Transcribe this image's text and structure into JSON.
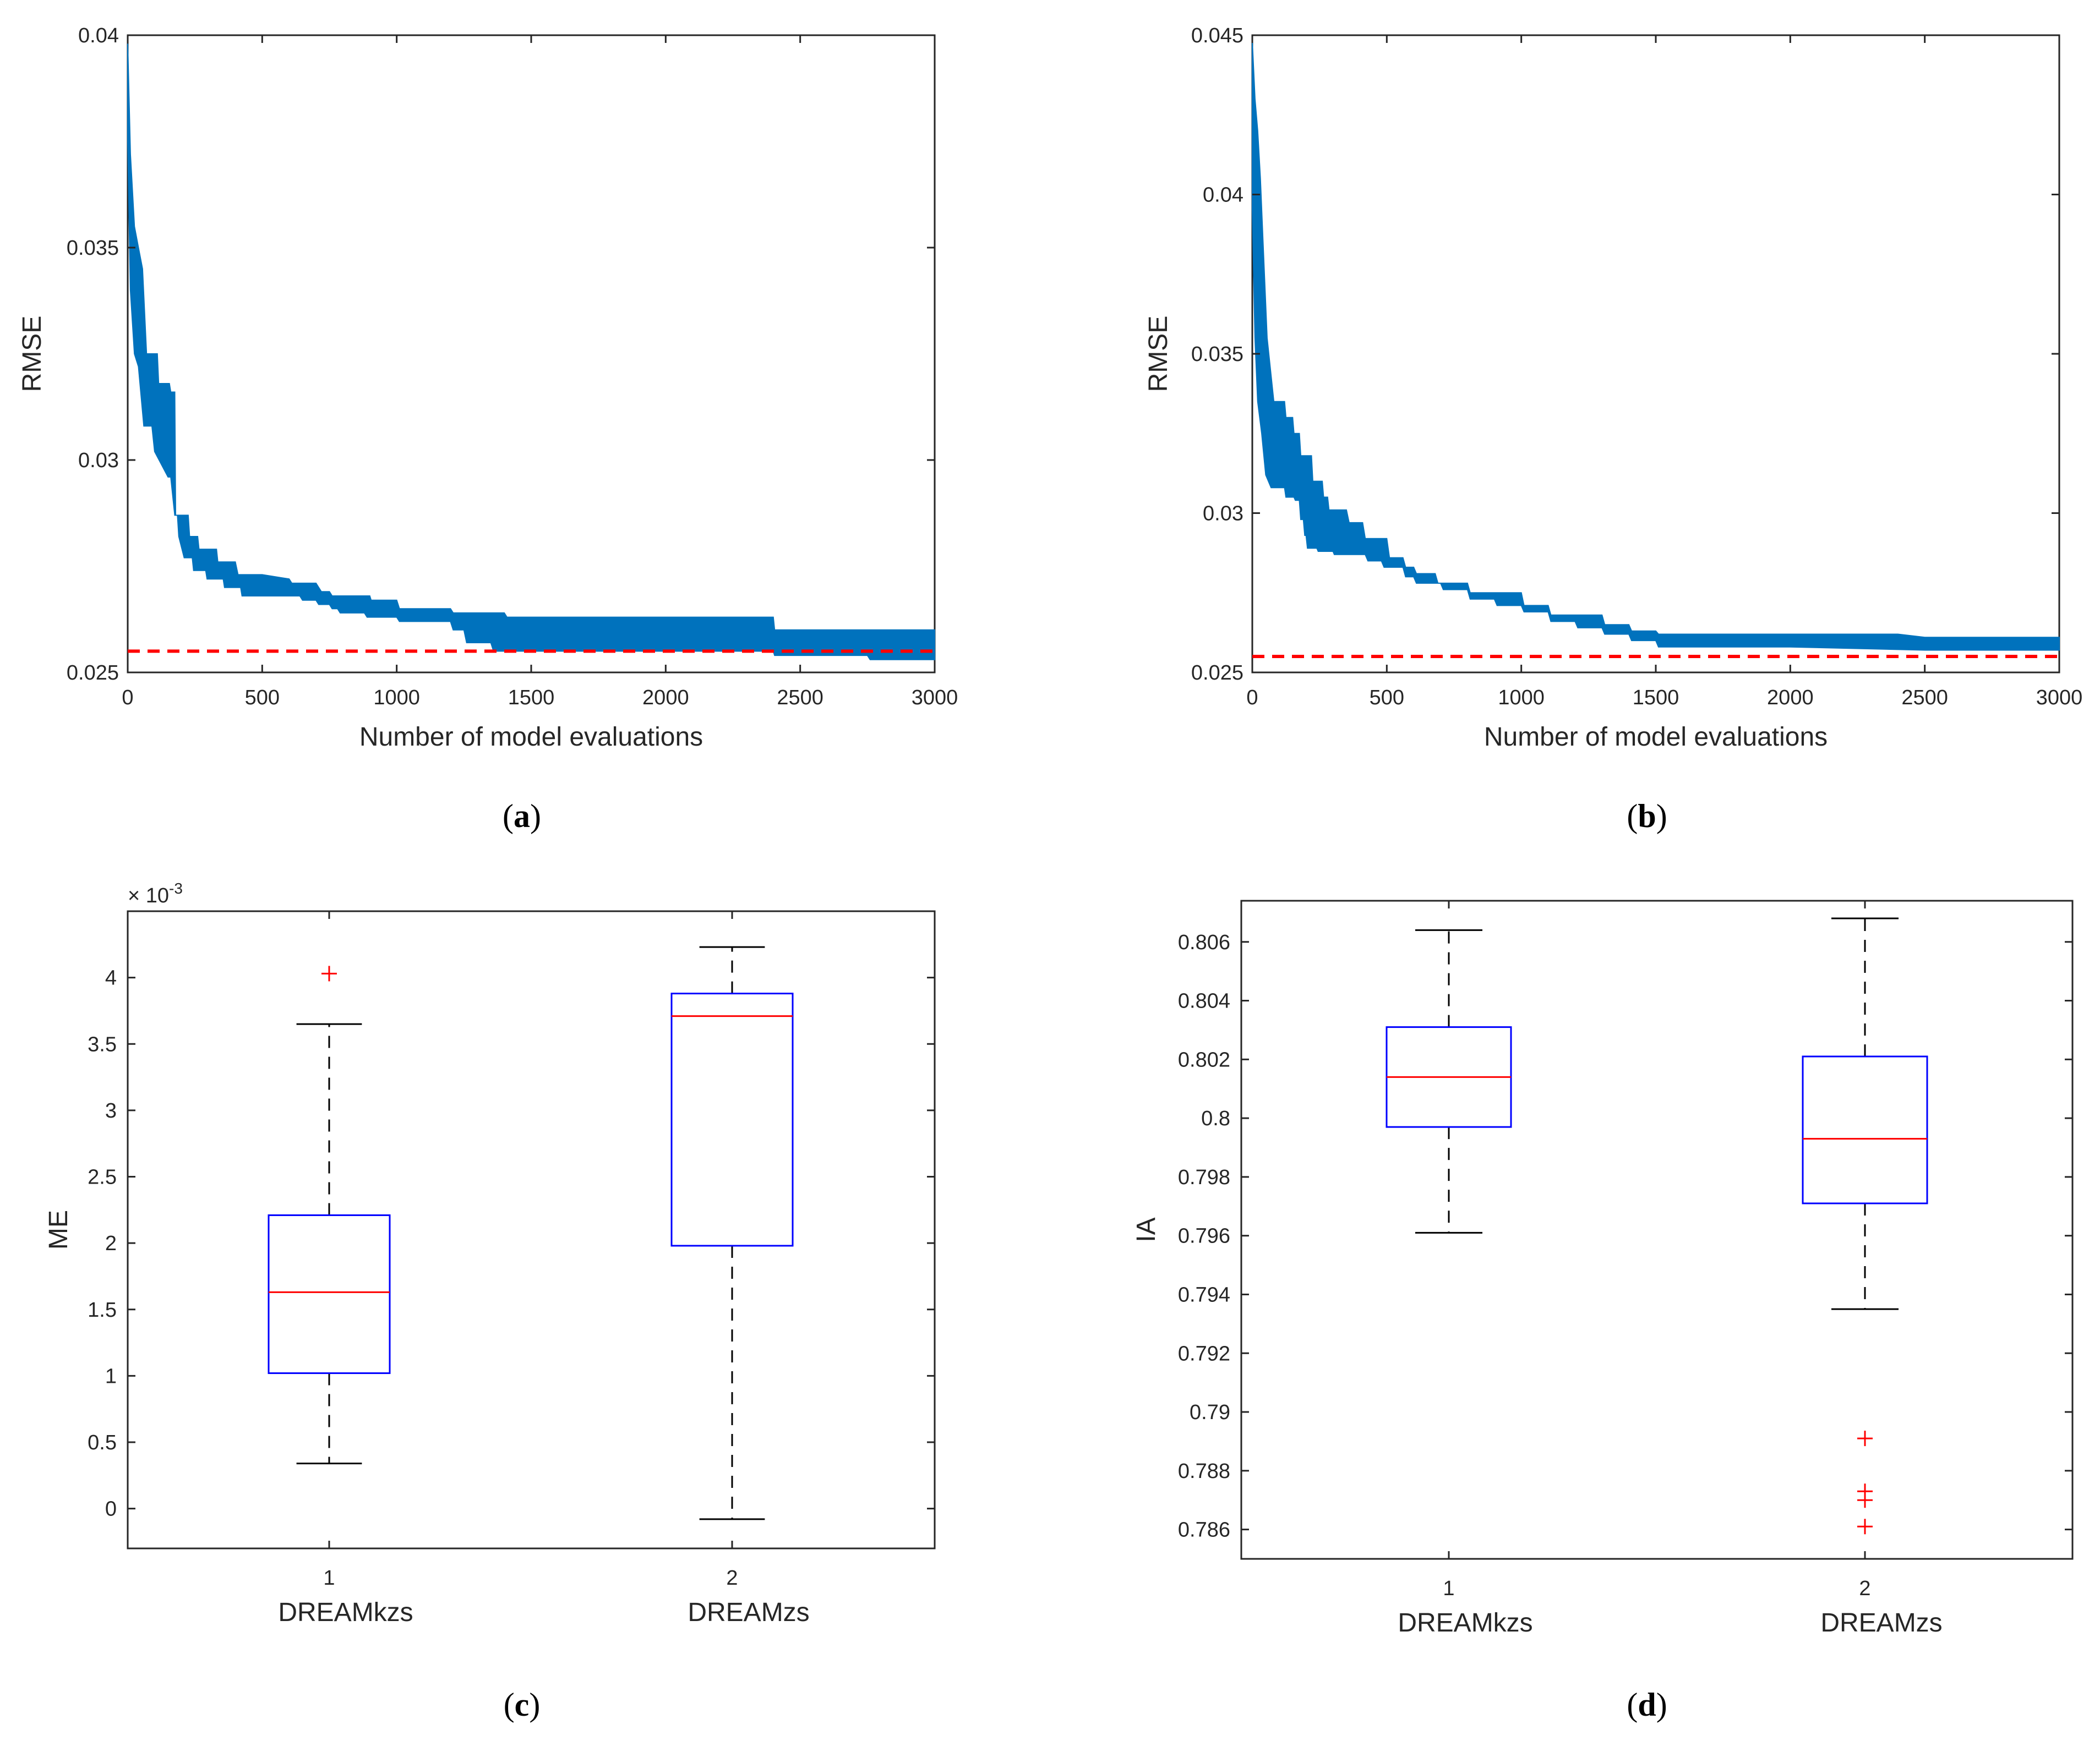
{
  "chart_data": [
    {
      "type": "area",
      "panel": "a",
      "caption": {
        "pre": "(",
        "letter": "a",
        "post": ")"
      },
      "xlabel": "Number of model evaluations",
      "ylabel": "RMSE",
      "xlim": [
        0,
        3000
      ],
      "ylim": [
        0.025,
        0.04
      ],
      "xticks": [
        "0",
        "500",
        "1000",
        "1500",
        "2000",
        "2500",
        "3000"
      ],
      "yticks": [
        "0.025",
        "0.03",
        "0.035",
        "0.04"
      ],
      "band_color": "#0072BD",
      "reference_value": 0.0255,
      "reference_color": "#FF0000",
      "upper": [
        [
          0,
          0.0398
        ],
        [
          10,
          0.0372
        ],
        [
          25,
          0.0355
        ],
        [
          40,
          0.035
        ],
        [
          55,
          0.0345
        ],
        [
          70,
          0.0325
        ],
        [
          110,
          0.0325
        ],
        [
          115,
          0.0318
        ],
        [
          155,
          0.0318
        ],
        [
          160,
          0.0316
        ],
        [
          175,
          0.0316
        ],
        [
          178,
          0.0287
        ],
        [
          225,
          0.0287
        ],
        [
          230,
          0.0282
        ],
        [
          260,
          0.0282
        ],
        [
          265,
          0.0279
        ],
        [
          330,
          0.0279
        ],
        [
          335,
          0.0276
        ],
        [
          400,
          0.0276
        ],
        [
          410,
          0.0273
        ],
        [
          500,
          0.0273
        ],
        [
          600,
          0.0272
        ],
        [
          610,
          0.0271
        ],
        [
          700,
          0.0271
        ],
        [
          720,
          0.0269
        ],
        [
          750,
          0.0269
        ],
        [
          760,
          0.0268
        ],
        [
          900,
          0.0268
        ],
        [
          905,
          0.0267
        ],
        [
          1000,
          0.0267
        ],
        [
          1010,
          0.0265
        ],
        [
          1200,
          0.0265
        ],
        [
          1210,
          0.0264
        ],
        [
          1400,
          0.0264
        ],
        [
          1410,
          0.0263
        ],
        [
          2000,
          0.0263
        ],
        [
          2400,
          0.0263
        ],
        [
          2405,
          0.026
        ],
        [
          3000,
          0.026
        ]
      ],
      "lower": [
        [
          0,
          0.0375
        ],
        [
          10,
          0.034
        ],
        [
          25,
          0.0325
        ],
        [
          40,
          0.0322
        ],
        [
          60,
          0.0308
        ],
        [
          90,
          0.0308
        ],
        [
          100,
          0.0302
        ],
        [
          150,
          0.0296
        ],
        [
          160,
          0.0296
        ],
        [
          175,
          0.0287
        ],
        [
          185,
          0.0287
        ],
        [
          190,
          0.0282
        ],
        [
          210,
          0.0277
        ],
        [
          240,
          0.0277
        ],
        [
          245,
          0.0274
        ],
        [
          290,
          0.0274
        ],
        [
          295,
          0.0272
        ],
        [
          355,
          0.0272
        ],
        [
          360,
          0.027
        ],
        [
          420,
          0.027
        ],
        [
          425,
          0.0268
        ],
        [
          500,
          0.0268
        ],
        [
          505,
          0.0268
        ],
        [
          560,
          0.0268
        ],
        [
          640,
          0.0268
        ],
        [
          650,
          0.0267
        ],
        [
          700,
          0.0267
        ],
        [
          710,
          0.0266
        ],
        [
          750,
          0.0266
        ],
        [
          760,
          0.0265
        ],
        [
          780,
          0.0265
        ],
        [
          790,
          0.0264
        ],
        [
          880,
          0.0264
        ],
        [
          890,
          0.0263
        ],
        [
          1000,
          0.0263
        ],
        [
          1010,
          0.0262
        ],
        [
          1200,
          0.0262
        ],
        [
          1210,
          0.026
        ],
        [
          1250,
          0.026
        ],
        [
          1260,
          0.0257
        ],
        [
          1350,
          0.0257
        ],
        [
          1360,
          0.0255
        ],
        [
          2000,
          0.0255
        ],
        [
          2400,
          0.0255
        ],
        [
          2405,
          0.0254
        ],
        [
          2750,
          0.0254
        ],
        [
          2760,
          0.0253
        ],
        [
          3000,
          0.0253
        ]
      ]
    },
    {
      "type": "area",
      "panel": "b",
      "caption": {
        "pre": "(",
        "letter": "b",
        "post": ")"
      },
      "xlabel": "Number of model evaluations",
      "ylabel": "RMSE",
      "xlim": [
        0,
        3000
      ],
      "ylim": [
        0.025,
        0.045
      ],
      "xticks": [
        "0",
        "500",
        "1000",
        "1500",
        "2000",
        "2500",
        "3000"
      ],
      "yticks": [
        "0.025",
        "0.03",
        "0.035",
        "0.04",
        "0.045"
      ],
      "band_color": "#0072BD",
      "reference_value": 0.0255,
      "reference_color": "#FF0000",
      "upper": [
        [
          0,
          0.0448
        ],
        [
          10,
          0.043
        ],
        [
          20,
          0.042
        ],
        [
          30,
          0.0405
        ],
        [
          40,
          0.0385
        ],
        [
          55,
          0.0355
        ],
        [
          80,
          0.0335
        ],
        [
          120,
          0.0335
        ],
        [
          125,
          0.033
        ],
        [
          150,
          0.033
        ],
        [
          155,
          0.0325
        ],
        [
          175,
          0.0325
        ],
        [
          180,
          0.0318
        ],
        [
          220,
          0.0318
        ],
        [
          225,
          0.031
        ],
        [
          260,
          0.031
        ],
        [
          265,
          0.0305
        ],
        [
          280,
          0.0305
        ],
        [
          285,
          0.0301
        ],
        [
          350,
          0.0301
        ],
        [
          360,
          0.0297
        ],
        [
          410,
          0.0297
        ],
        [
          420,
          0.0292
        ],
        [
          500,
          0.0292
        ],
        [
          510,
          0.0286
        ],
        [
          560,
          0.0286
        ],
        [
          570,
          0.0283
        ],
        [
          600,
          0.0283
        ],
        [
          610,
          0.0281
        ],
        [
          680,
          0.0281
        ],
        [
          690,
          0.0278
        ],
        [
          800,
          0.0278
        ],
        [
          810,
          0.0275
        ],
        [
          1000,
          0.0275
        ],
        [
          1010,
          0.0271
        ],
        [
          1100,
          0.0271
        ],
        [
          1110,
          0.0268
        ],
        [
          1300,
          0.0268
        ],
        [
          1310,
          0.0265
        ],
        [
          1400,
          0.0265
        ],
        [
          1410,
          0.0263
        ],
        [
          1500,
          0.0263
        ],
        [
          1510,
          0.0262
        ],
        [
          2000,
          0.0262
        ],
        [
          2400,
          0.0262
        ],
        [
          2500,
          0.0261
        ],
        [
          3000,
          0.0261
        ]
      ],
      "lower": [
        [
          0,
          0.0395
        ],
        [
          10,
          0.0355
        ],
        [
          20,
          0.0335
        ],
        [
          35,
          0.0325
        ],
        [
          50,
          0.0312
        ],
        [
          70,
          0.0308
        ],
        [
          120,
          0.0308
        ],
        [
          125,
          0.0305
        ],
        [
          155,
          0.0305
        ],
        [
          160,
          0.0304
        ],
        [
          175,
          0.0304
        ],
        [
          180,
          0.0298
        ],
        [
          190,
          0.0298
        ],
        [
          195,
          0.0293
        ],
        [
          200,
          0.0293
        ],
        [
          205,
          0.0289
        ],
        [
          240,
          0.0289
        ],
        [
          245,
          0.0288
        ],
        [
          300,
          0.0288
        ],
        [
          305,
          0.0287
        ],
        [
          420,
          0.0287
        ],
        [
          430,
          0.0285
        ],
        [
          480,
          0.0285
        ],
        [
          490,
          0.0283
        ],
        [
          560,
          0.0283
        ],
        [
          570,
          0.028
        ],
        [
          600,
          0.028
        ],
        [
          610,
          0.0278
        ],
        [
          700,
          0.0278
        ],
        [
          710,
          0.0276
        ],
        [
          800,
          0.0276
        ],
        [
          810,
          0.0273
        ],
        [
          900,
          0.0273
        ],
        [
          910,
          0.0271
        ],
        [
          1000,
          0.0271
        ],
        [
          1010,
          0.0269
        ],
        [
          1100,
          0.0269
        ],
        [
          1110,
          0.0266
        ],
        [
          1200,
          0.0266
        ],
        [
          1210,
          0.0264
        ],
        [
          1300,
          0.0264
        ],
        [
          1310,
          0.0262
        ],
        [
          1400,
          0.0262
        ],
        [
          1410,
          0.026
        ],
        [
          1500,
          0.026
        ],
        [
          1510,
          0.0258
        ],
        [
          2000,
          0.0258
        ],
        [
          2500,
          0.0257
        ],
        [
          3000,
          0.0257
        ]
      ]
    },
    {
      "type": "box",
      "panel": "c",
      "caption": {
        "pre": "(",
        "letter": "c",
        "post": ")"
      },
      "ylabel": "ME",
      "yscale_label": "× 10",
      "yscale_exp": "-3",
      "ylim": [
        -0.3,
        4.5
      ],
      "yticks": [
        "0",
        "0.5",
        "1",
        "1.5",
        "2",
        "2.5",
        "3",
        "3.5",
        "4"
      ],
      "box_color": "#0000FF",
      "median_color": "#FF0000",
      "outlier_color": "#FF0000",
      "groups": [
        {
          "tick": "1",
          "name": "DREAMkzs",
          "q1": 1.02,
          "median": 1.63,
          "q3": 2.21,
          "whisker_low": 0.34,
          "whisker_high": 3.65,
          "outliers": [
            4.03
          ]
        },
        {
          "tick": "2",
          "name": "DREAMzs",
          "q1": 1.98,
          "median": 3.71,
          "q3": 3.88,
          "whisker_low": -0.08,
          "whisker_high": 4.23,
          "outliers": []
        }
      ]
    },
    {
      "type": "box",
      "panel": "d",
      "caption": {
        "pre": "(",
        "letter": "d",
        "post": ")"
      },
      "ylabel": "IA",
      "ylim": [
        0.785,
        0.8074
      ],
      "yticks": [
        "0.786",
        "0.788",
        "0.79",
        "0.792",
        "0.794",
        "0.796",
        "0.798",
        "0.8",
        "0.802",
        "0.804",
        "0.806"
      ],
      "box_color": "#0000FF",
      "median_color": "#FF0000",
      "outlier_color": "#FF0000",
      "groups": [
        {
          "tick": "1",
          "name": "DREAMkzs",
          "q1": 0.7997,
          "median": 0.8014,
          "q3": 0.8031,
          "whisker_low": 0.7961,
          "whisker_high": 0.8064,
          "outliers": []
        },
        {
          "tick": "2",
          "name": "DREAMzs",
          "q1": 0.7971,
          "median": 0.7993,
          "q3": 0.8021,
          "whisker_low": 0.7935,
          "whisker_high": 0.8068,
          "outliers": [
            0.7891,
            0.7873,
            0.787,
            0.7861
          ]
        }
      ]
    }
  ]
}
